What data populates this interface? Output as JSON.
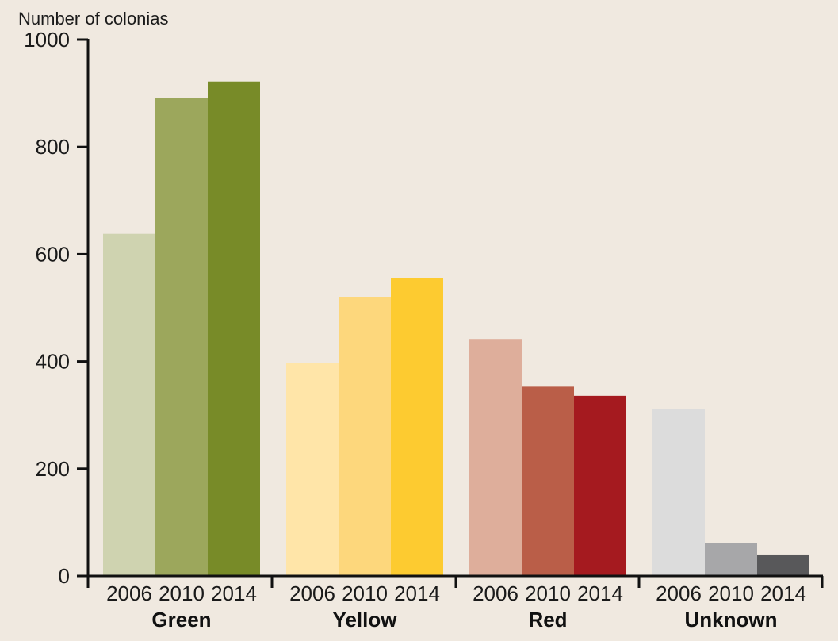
{
  "chart_data": {
    "type": "bar",
    "ylabel": "Number of colonias",
    "yticks": [
      "0",
      "200",
      "400",
      "600",
      "800",
      "1000"
    ],
    "ylim": [
      0,
      1000
    ],
    "grid": false,
    "groups": [
      {
        "name": "Green",
        "bars": [
          {
            "year": "2006",
            "value": 638,
            "color": "#cfd3b0"
          },
          {
            "year": "2010",
            "value": 892,
            "color": "#9ca75c"
          },
          {
            "year": "2014",
            "value": 922,
            "color": "#788b28"
          }
        ]
      },
      {
        "name": "Yellow",
        "bars": [
          {
            "year": "2006",
            "value": 397,
            "color": "#ffe5a8"
          },
          {
            "year": "2010",
            "value": 520,
            "color": "#fdd77c"
          },
          {
            "year": "2014",
            "value": 556,
            "color": "#fdcb30"
          }
        ]
      },
      {
        "name": "Red",
        "bars": [
          {
            "year": "2006",
            "value": 442,
            "color": "#deae9b"
          },
          {
            "year": "2010",
            "value": 353,
            "color": "#ba5e48"
          },
          {
            "year": "2014",
            "value": 336,
            "color": "#a51a1f"
          }
        ]
      },
      {
        "name": "Unknown",
        "bars": [
          {
            "year": "2006",
            "value": 312,
            "color": "#dcdcdc"
          },
          {
            "year": "2010",
            "value": 62,
            "color": "#a7a7a9"
          },
          {
            "year": "2014",
            "value": 40,
            "color": "#58585a"
          }
        ]
      }
    ]
  }
}
